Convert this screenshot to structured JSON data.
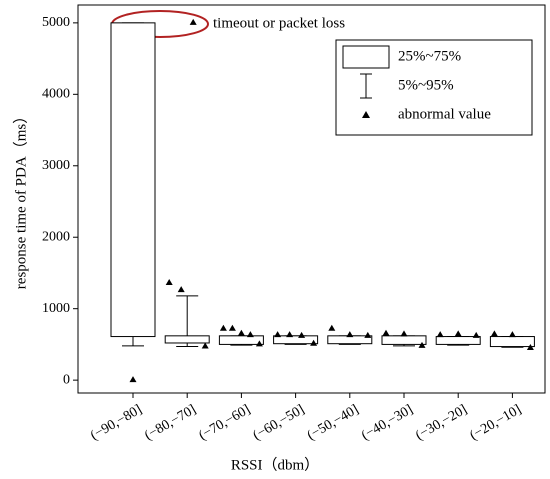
{
  "chart_data": {
    "type": "box",
    "annotation": "timeout or packet loss",
    "x_label": "RSSI（dbm）",
    "y_label": "response time of PDA（ms）",
    "categories": [
      "(−90,−80]",
      "(−80,−70]",
      "(−70,−60]",
      "(−60,−50]",
      "(−50,−40]",
      "(−40,−30]",
      "(−30,−20]",
      "(−20,−10]"
    ],
    "legend": {
      "box": "25%~75%",
      "whisker": "5%~95%",
      "outlier": "abnormal value"
    },
    "q1": [
      610,
      520,
      500,
      510,
      510,
      500,
      500,
      470
    ],
    "q3": [
      5000,
      620,
      620,
      620,
      620,
      620,
      610,
      610
    ],
    "p5": [
      480,
      470,
      490,
      500,
      500,
      480,
      490,
      460
    ],
    "p95": [
      5000,
      1180,
      620,
      620,
      620,
      620,
      610,
      610
    ],
    "outliers": [
      [
        0
      ],
      [
        1360,
        1260,
        5000,
        470
      ],
      [
        720,
        720,
        650,
        630,
        500
      ],
      [
        630,
        630,
        620,
        510
      ],
      [
        720,
        630,
        620
      ],
      [
        650,
        640,
        480
      ],
      [
        630,
        640,
        620
      ],
      [
        640,
        630,
        450
      ]
    ],
    "ylim": [
      -180,
      5250
    ],
    "yticks": [
      0,
      1000,
      2000,
      3000,
      4000,
      5000
    ],
    "annotation_color": "#b22222"
  }
}
